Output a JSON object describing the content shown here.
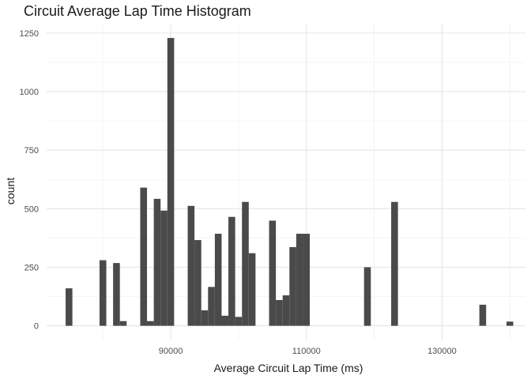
{
  "chart_data": {
    "type": "bar",
    "subtype": "histogram",
    "title": "Circuit Average Lap Time Histogram",
    "xlabel": "Average Circuit Lap Time (ms)",
    "ylabel": "count",
    "xlim": [
      71700,
      142300
    ],
    "ylim": [
      -62,
      1290
    ],
    "x_ticks": [
      90000,
      110000,
      130000
    ],
    "y_ticks": [
      0,
      250,
      500,
      750,
      1000,
      1250
    ],
    "bin_width": 1000,
    "grid": true,
    "bar_color": "#4a4a4a",
    "bins": [
      {
        "x": 75000,
        "count": 160
      },
      {
        "x": 80000,
        "count": 280
      },
      {
        "x": 82000,
        "count": 268
      },
      {
        "x": 83000,
        "count": 20
      },
      {
        "x": 86000,
        "count": 590
      },
      {
        "x": 87000,
        "count": 20
      },
      {
        "x": 88000,
        "count": 542
      },
      {
        "x": 89000,
        "count": 492
      },
      {
        "x": 90000,
        "count": 1229
      },
      {
        "x": 93000,
        "count": 512
      },
      {
        "x": 94000,
        "count": 366
      },
      {
        "x": 95000,
        "count": 66
      },
      {
        "x": 96000,
        "count": 166
      },
      {
        "x": 97000,
        "count": 393
      },
      {
        "x": 98000,
        "count": 43
      },
      {
        "x": 99000,
        "count": 465
      },
      {
        "x": 100000,
        "count": 38
      },
      {
        "x": 101000,
        "count": 529
      },
      {
        "x": 102000,
        "count": 310
      },
      {
        "x": 105000,
        "count": 449
      },
      {
        "x": 106000,
        "count": 110
      },
      {
        "x": 107000,
        "count": 130
      },
      {
        "x": 108000,
        "count": 336
      },
      {
        "x": 109000,
        "count": 393
      },
      {
        "x": 110000,
        "count": 393
      },
      {
        "x": 119000,
        "count": 250
      },
      {
        "x": 123000,
        "count": 529
      },
      {
        "x": 136000,
        "count": 90
      },
      {
        "x": 140000,
        "count": 18
      }
    ]
  }
}
